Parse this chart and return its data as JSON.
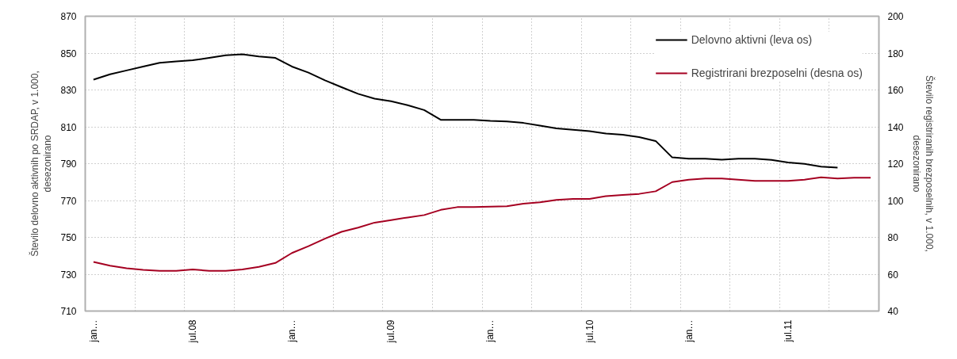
{
  "chart_data": {
    "type": "line",
    "categories": [
      "jan…",
      null,
      null,
      null,
      null,
      null,
      "jul.08",
      null,
      null,
      null,
      null,
      null,
      "jan…",
      null,
      null,
      null,
      null,
      null,
      "jul.09",
      null,
      null,
      null,
      null,
      null,
      "jan…",
      null,
      null,
      null,
      null,
      null,
      "jul.10",
      null,
      null,
      null,
      null,
      null,
      "jan…",
      null,
      null,
      null,
      null,
      null,
      "jul.11",
      null,
      null,
      null,
      null,
      null
    ],
    "ylabel": "Število delovno aktivnih po SRDAP, v 1.000, desezonirano",
    "y2label": "Število registriranih brezposelnih, v 1.000, desezonirano",
    "ylim": [
      710,
      870
    ],
    "yticks": [
      710,
      730,
      750,
      770,
      790,
      810,
      830,
      850,
      870
    ],
    "y2lim": [
      40,
      200
    ],
    "y2ticks": [
      40,
      60,
      80,
      100,
      120,
      140,
      160,
      180,
      200
    ],
    "grid": true,
    "legend": "top right",
    "line_style": "solid",
    "series": [
      {
        "name": "Delovno aktivni (leva os)",
        "color": "#000000",
        "values": [
          835.6,
          838.5,
          840.6,
          842.7,
          844.7,
          845.5,
          846.1,
          847.4,
          848.8,
          849.4,
          848.2,
          847.4,
          842.7,
          839.4,
          835.2,
          831.5,
          827.9,
          825.3,
          823.9,
          821.7,
          819.1,
          813.8,
          813.8,
          813.8,
          813.2,
          812.9,
          812.1,
          810.6,
          809.1,
          808.4,
          807.6,
          806.3,
          805.7,
          804.4,
          802.3,
          793.4,
          792.7,
          792.7,
          792.1,
          792.7,
          792.7,
          792.0,
          790.6,
          789.9,
          788.4,
          787.9,
          null,
          null
        ]
      },
      {
        "name": "Registrirani brezposelni (desna os)",
        "color": "#a50021",
        "axis": "y2",
        "values": [
          66.7,
          64.6,
          63.2,
          62.4,
          61.8,
          61.8,
          62.6,
          61.8,
          61.8,
          62.6,
          64.0,
          66.1,
          71.5,
          75.2,
          79.3,
          83.0,
          85.3,
          88.0,
          89.4,
          90.8,
          92.1,
          94.9,
          96.4,
          96.4,
          96.7,
          96.9,
          98.3,
          99.0,
          100.3,
          100.9,
          100.9,
          102.4,
          103.0,
          103.6,
          105.0,
          110.0,
          111.3,
          111.9,
          111.9,
          111.3,
          110.6,
          110.6,
          110.6,
          111.3,
          112.6,
          111.9,
          112.4,
          112.4
        ]
      }
    ]
  }
}
